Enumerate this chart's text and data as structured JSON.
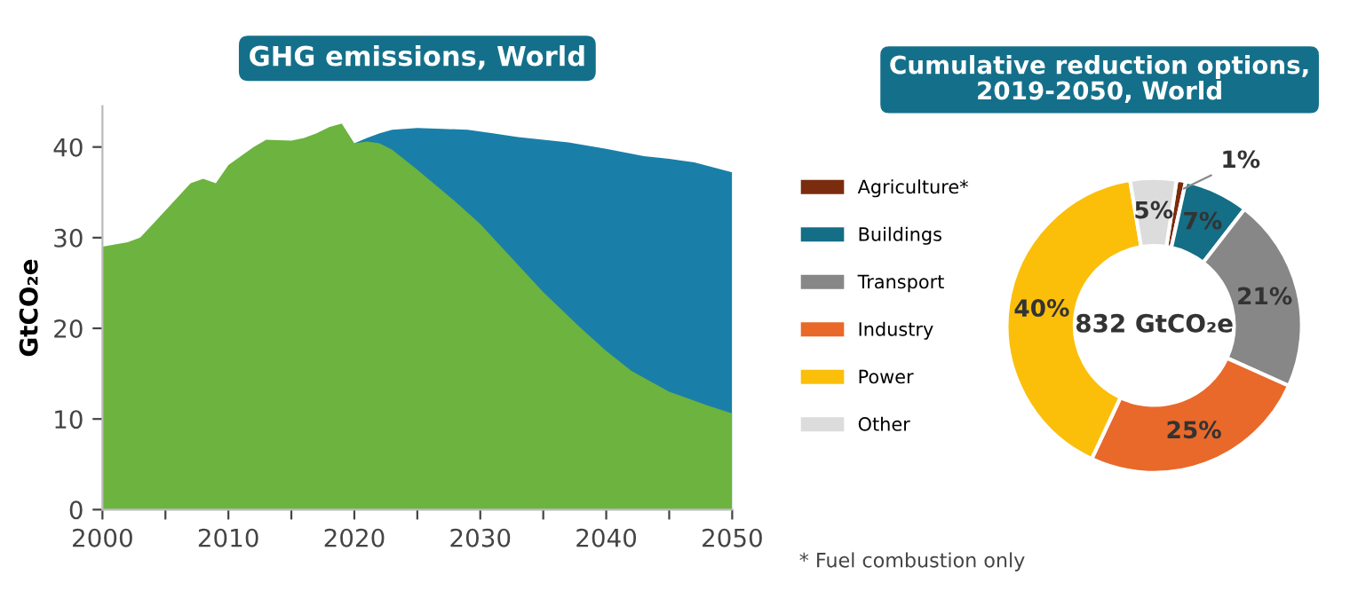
{
  "chart_data": [
    {
      "type": "area",
      "title": "GHG emissions, World",
      "ylabel": "GtCO₂e",
      "xlim": [
        2000,
        2050
      ],
      "ylim": [
        0,
        44.5
      ],
      "xticks": [
        2000,
        {
          "value": 2005,
          "label": null
        },
        2010,
        {
          "value": 2015,
          "label": null
        },
        2020,
        {
          "value": 2025,
          "label": null
        },
        2030,
        {
          "value": 2035,
          "label": null
        },
        2040,
        {
          "value": 2045,
          "label": null
        },
        2050
      ],
      "yticks": [
        0,
        10,
        20,
        30,
        40
      ],
      "grid": false,
      "legend": false,
      "series": [
        {
          "color": "#1a7fa8",
          "x": [
            2020,
            2021,
            2022,
            2023,
            2025,
            2027,
            2029,
            2031,
            2033,
            2035,
            2037,
            2040,
            2043,
            2045,
            2047,
            2050
          ],
          "values": [
            40.4,
            41,
            41.5,
            41.9,
            42.1,
            42,
            41.9,
            41.5,
            41.1,
            40.8,
            40.5,
            39.8,
            39,
            38.7,
            38.3,
            37.2
          ]
        },
        {
          "color": "#6cb33f",
          "x": [
            2000,
            2002,
            2003,
            2005,
            2007,
            2008,
            2009,
            2010,
            2012,
            2013,
            2015,
            2016,
            2017,
            2018,
            2019,
            2020,
            2021,
            2022,
            2023,
            2025,
            2028,
            2030,
            2032,
            2035,
            2038,
            2040,
            2042,
            2045,
            2048,
            2050
          ],
          "values": [
            29,
            29.5,
            30,
            33,
            36,
            36.5,
            36,
            38,
            40,
            40.8,
            40.7,
            41,
            41.5,
            42.2,
            42.6,
            40.4,
            40.6,
            40.4,
            39.7,
            37.5,
            34,
            31.5,
            28.5,
            24,
            20,
            17.5,
            15.3,
            13,
            11.5,
            10.6
          ]
        }
      ]
    },
    {
      "type": "donut",
      "title": "Cumulative reduction options,\n2019-2050, World",
      "legend": "left",
      "value_labels": [
        "1%",
        "7%",
        "21%",
        "25%",
        "40%",
        "5%"
      ],
      "categories": [
        "Agriculture*",
        "Buildings",
        "Transport",
        "Industry",
        "Power",
        "Other"
      ],
      "values": [
        1,
        7,
        21,
        25,
        40,
        5
      ],
      "colors": [
        "#7b2c0e",
        "#136e86",
        "#878787",
        "#e8692a",
        "#fbbf0a",
        "#dcdcdc"
      ],
      "annotations": [
        "832 GtCO₂e",
        "* Fuel combustion only"
      ]
    }
  ]
}
